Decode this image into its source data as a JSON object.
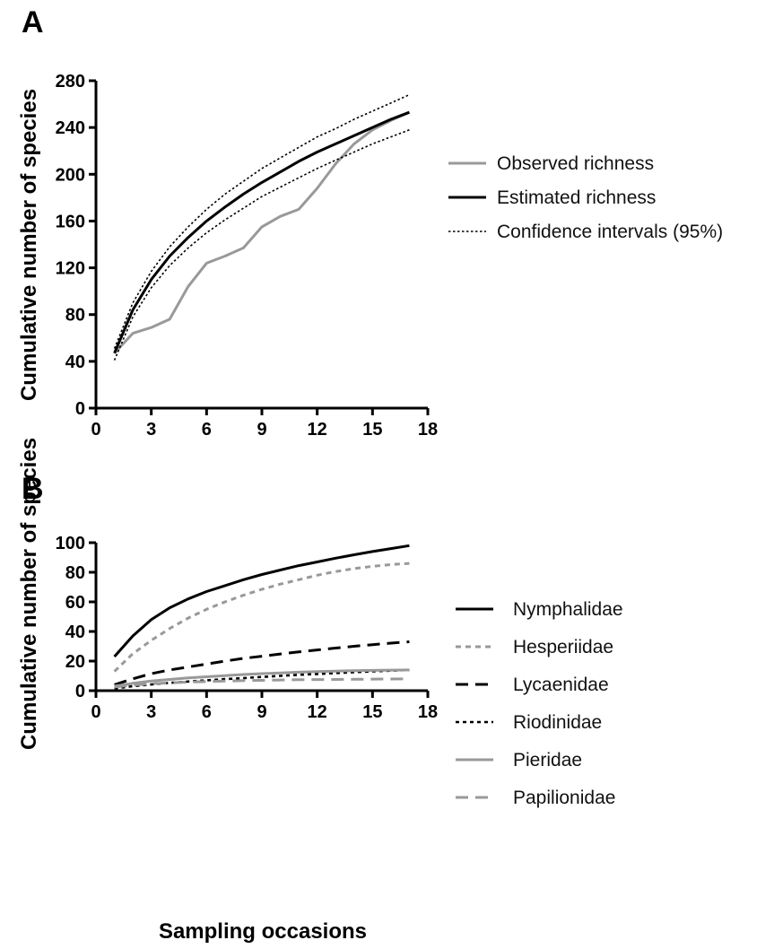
{
  "chart_data": [
    {
      "panel": "A",
      "type": "line",
      "xlabel": "",
      "ylabel": "Cumulative number of species",
      "xlim": [
        0,
        18
      ],
      "ylim": [
        0,
        280
      ],
      "xticks": [
        0,
        3,
        6,
        9,
        12,
        15,
        18
      ],
      "yticks": [
        0,
        40,
        80,
        120,
        160,
        200,
        240,
        280
      ],
      "legend_position": "right",
      "series": [
        {
          "name": "Observed richness",
          "color": "#999999",
          "style": "solid",
          "x": [
            1,
            2,
            3,
            4,
            5,
            6,
            7,
            8,
            9,
            10,
            11,
            12,
            13,
            14,
            15,
            16,
            17
          ],
          "y": [
            47,
            64,
            69,
            76,
            104,
            124,
            130,
            137,
            155,
            164,
            170,
            188,
            209,
            226,
            238,
            246,
            253
          ]
        },
        {
          "name": "Estimated richness",
          "color": "#000000",
          "style": "solid",
          "x": [
            1,
            2,
            3,
            4,
            5,
            6,
            7,
            8,
            9,
            10,
            11,
            12,
            13,
            14,
            15,
            16,
            17
          ],
          "y": [
            47,
            84,
            110,
            130,
            146,
            160,
            172,
            183,
            193,
            202,
            211,
            219,
            226,
            233,
            240,
            247,
            253
          ]
        },
        {
          "name": "Confidence intervals (95%)",
          "color": "#000000",
          "style": "dotted",
          "x": [
            1,
            2,
            3,
            4,
            5,
            6,
            7,
            8,
            9,
            10,
            11,
            12,
            13,
            14,
            15,
            16,
            17
          ],
          "y": [
            51,
            90,
            117,
            138,
            155,
            170,
            183,
            194,
            205,
            214,
            223,
            232,
            239,
            247,
            254,
            261,
            268
          ]
        },
        {
          "name": "",
          "color": "#000000",
          "style": "dotted",
          "x": [
            1,
            2,
            3,
            4,
            5,
            6,
            7,
            8,
            9,
            10,
            11,
            12,
            13,
            14,
            15,
            16,
            17
          ],
          "y": [
            41,
            78,
            103,
            122,
            137,
            150,
            161,
            171,
            181,
            189,
            197,
            205,
            212,
            219,
            226,
            232,
            238
          ]
        }
      ]
    },
    {
      "panel": "B",
      "type": "line",
      "xlabel": "Sampling occasions",
      "ylabel": "Cumulative number of species",
      "xlim": [
        0,
        18
      ],
      "ylim": [
        0,
        100
      ],
      "xticks": [
        0,
        3,
        6,
        9,
        12,
        15,
        18
      ],
      "yticks": [
        0,
        20,
        40,
        60,
        80,
        100
      ],
      "legend_position": "right",
      "series": [
        {
          "name": "Nymphalidae",
          "color": "#000000",
          "style": "solid",
          "x": [
            1,
            2,
            3,
            4,
            5,
            6,
            7,
            8,
            9,
            10,
            11,
            12,
            13,
            14,
            15,
            16,
            17
          ],
          "y": [
            23,
            37,
            48,
            56,
            62,
            67,
            71,
            75,
            78.5,
            81.5,
            84.5,
            87,
            89.5,
            91.8,
            94,
            96,
            98
          ]
        },
        {
          "name": "Hesperiidae",
          "color": "#999999",
          "style": "dashed-fine",
          "x": [
            1,
            2,
            3,
            4,
            5,
            6,
            7,
            8,
            9,
            10,
            11,
            12,
            13,
            14,
            15,
            16,
            17
          ],
          "y": [
            13,
            25,
            34,
            42,
            49,
            55,
            60,
            64.5,
            68.5,
            72,
            75,
            78,
            80.5,
            82.5,
            84,
            85.2,
            86
          ]
        },
        {
          "name": "Lycaenidae",
          "color": "#000000",
          "style": "dashed",
          "x": [
            1,
            2,
            3,
            4,
            5,
            6,
            7,
            8,
            9,
            10,
            11,
            12,
            13,
            14,
            15,
            16,
            17
          ],
          "y": [
            4,
            8,
            11.5,
            14,
            16,
            18,
            20,
            21.8,
            23.3,
            24.8,
            26.2,
            27.5,
            28.8,
            30,
            31.1,
            32.1,
            33
          ]
        },
        {
          "name": "Riodinidae",
          "color": "#000000",
          "style": "dotted",
          "x": [
            1,
            2,
            3,
            4,
            5,
            6,
            7,
            8,
            9,
            10,
            11,
            12,
            13,
            14,
            15,
            16,
            17
          ],
          "y": [
            1.5,
            3,
            4.2,
            5.3,
            6.2,
            7,
            7.8,
            8.5,
            9.3,
            10,
            10.7,
            11.3,
            11.9,
            12.5,
            13,
            13.5,
            14
          ]
        },
        {
          "name": "Pieridae",
          "color": "#999999",
          "style": "solid",
          "x": [
            1,
            2,
            3,
            4,
            5,
            6,
            7,
            8,
            9,
            10,
            11,
            12,
            13,
            14,
            15,
            16,
            17
          ],
          "y": [
            3,
            5,
            6.5,
            7.6,
            8.6,
            9.4,
            10.2,
            10.9,
            11.5,
            12,
            12.5,
            12.9,
            13.2,
            13.5,
            13.7,
            13.9,
            14
          ]
        },
        {
          "name": "Papilionidae",
          "color": "#999999",
          "style": "dashed",
          "x": [
            1,
            2,
            3,
            4,
            5,
            6,
            7,
            8,
            9,
            10,
            11,
            12,
            13,
            14,
            15,
            16,
            17
          ],
          "y": [
            2.5,
            3.8,
            4.7,
            5.3,
            5.8,
            6.2,
            6.5,
            6.8,
            7,
            7.2,
            7.4,
            7.5,
            7.6,
            7.7,
            7.8,
            7.9,
            8
          ]
        }
      ]
    }
  ]
}
